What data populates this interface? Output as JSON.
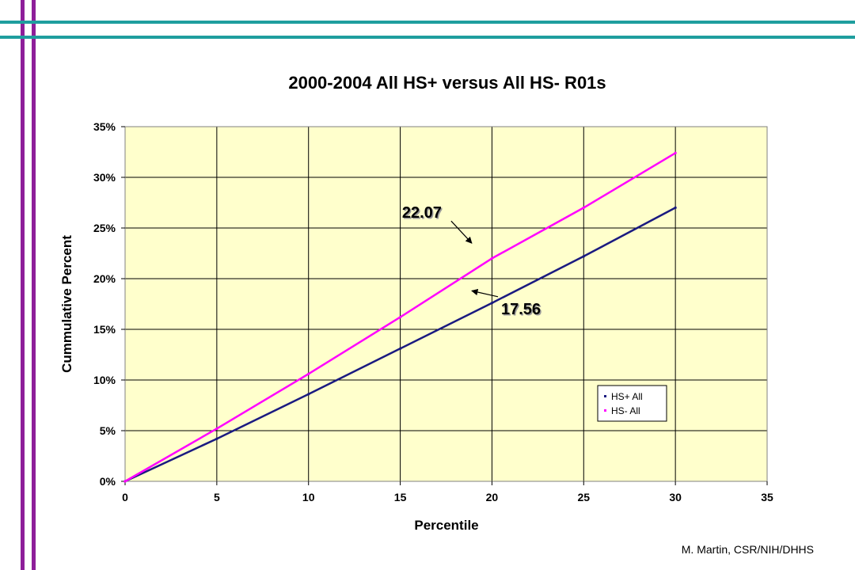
{
  "credit": "M. Martin, CSR/NIH/DHHS",
  "colors": {
    "slide_vertical_bars": "#8e1f9a",
    "slide_horizontal_bars": "#1f9e9e",
    "plot_background": "#ffffcc",
    "hs_plus": "#1a1a80",
    "hs_minus": "#ff00ff"
  },
  "chart_data": {
    "type": "line",
    "title": "2000-2004 All HS+ versus All HS- R01s",
    "xlabel": "Percentile",
    "ylabel": "Cummulative Percent",
    "xlim": [
      0,
      35
    ],
    "ylim": [
      0,
      0.35
    ],
    "x_ticks": [
      "0",
      "5",
      "10",
      "15",
      "20",
      "25",
      "30",
      "35"
    ],
    "y_ticks": [
      "0%",
      "5%",
      "10%",
      "15%",
      "20%",
      "25%",
      "30%",
      "35%"
    ],
    "grid": true,
    "legend_position": "bottom-right",
    "series": [
      {
        "name": "HS+ All",
        "color": "#1a1a80",
        "x": [
          0,
          5,
          10,
          15,
          20,
          25,
          30
        ],
        "y": [
          0,
          0.042,
          0.086,
          0.131,
          0.176,
          0.222,
          0.27
        ]
      },
      {
        "name": "HS- All",
        "color": "#ff00ff",
        "x": [
          0,
          5,
          10,
          15,
          20,
          25,
          30
        ],
        "y": [
          0,
          0.052,
          0.106,
          0.162,
          0.22,
          0.27,
          0.324
        ]
      }
    ],
    "annotations": [
      {
        "text": "22.07",
        "text_x": 15.1,
        "text_y": 0.26,
        "point_x": 18.9,
        "point_y": 0.235
      },
      {
        "text": "17.56",
        "text_x": 20.5,
        "text_y": 0.165,
        "point_x": 18.9,
        "point_y": 0.188
      }
    ]
  }
}
